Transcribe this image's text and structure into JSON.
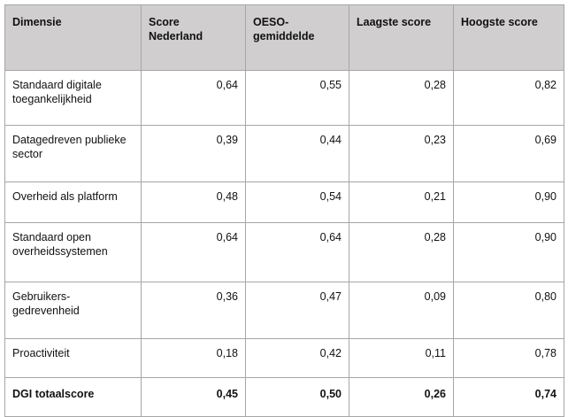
{
  "table": {
    "headers": [
      "Dimensie",
      "Score\nNederland",
      "OESO-\ngemiddelde",
      "Laagste score",
      "Hoogste score"
    ],
    "rows": [
      {
        "dimensie": "Standaard digitale toegankelijkheid",
        "score_nl": "0,64",
        "oeso": "0,55",
        "laagste": "0,28",
        "hoogste": "0,82"
      },
      {
        "dimensie": "Datagedreven publieke sector",
        "score_nl": "0,39",
        "oeso": "0,44",
        "laagste": "0,23",
        "hoogste": "0,69"
      },
      {
        "dimensie": "Overheid als platform",
        "score_nl": "0,48",
        "oeso": "0,54",
        "laagste": "0,21",
        "hoogste": "0,90"
      },
      {
        "dimensie": "Standaard open overheidssystemen",
        "score_nl": "0,64",
        "oeso": "0,64",
        "laagste": "0,28",
        "hoogste": "0,90"
      },
      {
        "dimensie": "Gebruikers-\ngedrevenheid",
        "score_nl": "0,36",
        "oeso": "0,47",
        "laagste": "0,09",
        "hoogste": "0,80"
      },
      {
        "dimensie": "Proactiviteit",
        "score_nl": "0,18",
        "oeso": "0,42",
        "laagste": "0,11",
        "hoogste": "0,78"
      }
    ],
    "total": {
      "dimensie": "DGI totaalscore",
      "score_nl": "0,45",
      "oeso": "0,50",
      "laagste": "0,26",
      "hoogste": "0,74"
    }
  }
}
